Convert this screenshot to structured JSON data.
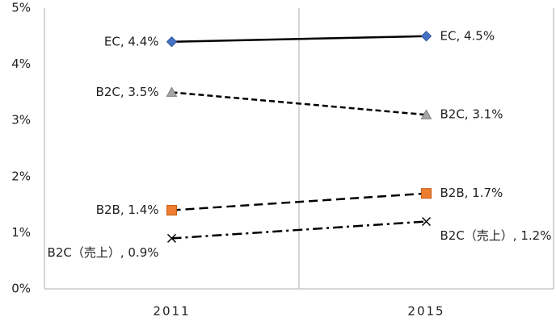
{
  "chart_data": {
    "type": "line",
    "categories": [
      "2011",
      "2015"
    ],
    "ylim": [
      0,
      5
    ],
    "yticks": [
      {
        "value": 0,
        "label": "0%"
      },
      {
        "value": 1,
        "label": "1%"
      },
      {
        "value": 2,
        "label": "2%"
      },
      {
        "value": 3,
        "label": "3%"
      },
      {
        "value": 4,
        "label": "4%"
      },
      {
        "value": 5,
        "label": "5%"
      }
    ],
    "series": [
      {
        "color": "#4472c4",
        "values": [
          4.4,
          4.5
        ],
        "value_labels": [
          "EC, 4.4%",
          "EC, 4.5%"
        ]
      },
      {
        "color": "#a5a5a5",
        "values": [
          3.5,
          3.1
        ],
        "value_labels": [
          "B2C, 3.5%",
          "B2C, 3.1%"
        ]
      },
      {
        "color": "#ed7d31",
        "values": [
          1.4,
          1.7
        ],
        "value_labels": [
          "B2B, 1.4%",
          "B2B, 1.7%"
        ]
      },
      {
        "color": "#000000",
        "values": [
          0.9,
          1.2
        ],
        "value_labels": [
          "B2C（売上）, 0.9%",
          "B2C（売上）, 1.2%"
        ]
      }
    ]
  }
}
